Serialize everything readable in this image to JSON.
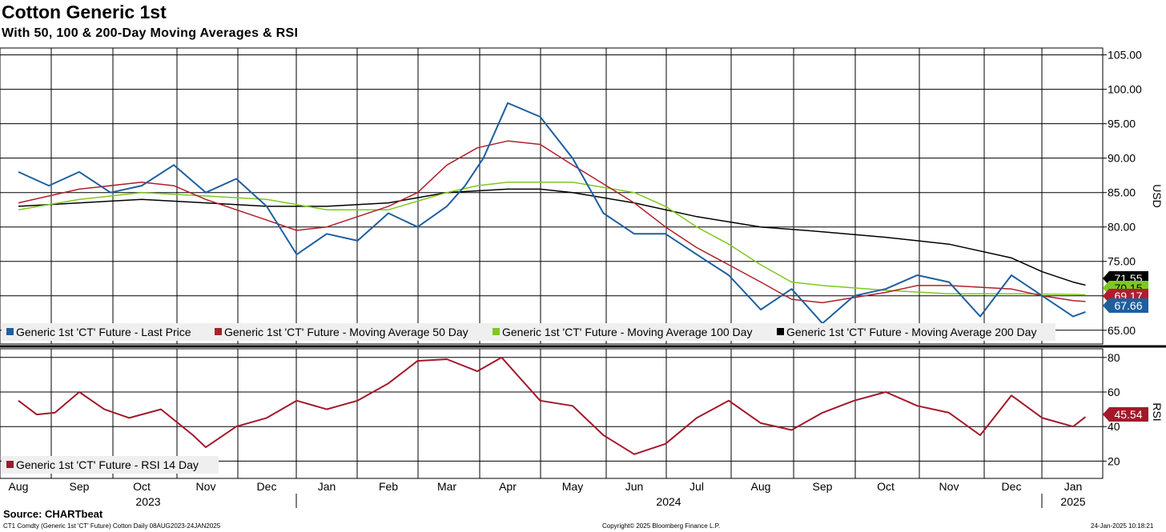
{
  "title": "Cotton Generic 1st",
  "subtitle": "With 50, 100 & 200-Day Moving Averages & RSI",
  "footer": {
    "source": "Source: CHARTbeat",
    "ticker": "CT1 Comdty (Generic 1st 'CT' Future) Cotton  Daily 08AUG2023-24JAN2025",
    "copyright": "Copyright© 2025 Bloomberg Finance L.P.",
    "timestamp": "24-Jan-2025 10:18:21"
  },
  "colors": {
    "price": "#1f5f9e",
    "ma50": "#b01e2b",
    "ma100": "#7ec820",
    "ma200": "#000000",
    "rsi": "#a3182b"
  },
  "chart_data": [
    {
      "type": "line",
      "panel": "price",
      "ylabel": "USD",
      "ylim": [
        63,
        106
      ],
      "yticks": [
        "105.00",
        "100.00",
        "95.00",
        "90.00",
        "85.00",
        "80.00",
        "75.00",
        "70.00",
        "65.00"
      ],
      "x_months": [
        "Aug",
        "Sep",
        "Oct",
        "Nov",
        "Dec",
        "Jan",
        "Feb",
        "Mar",
        "Apr",
        "May",
        "Jun",
        "Jul",
        "Aug",
        "Sep",
        "Oct",
        "Nov",
        "Dec",
        "Jan"
      ],
      "x_years": [
        "2023",
        "2024",
        "2025"
      ],
      "legend": [
        "Generic 1st 'CT' Future - Last Price",
        "Generic 1st 'CT' Future - Moving Average 50 Day",
        "Generic 1st 'CT' Future - Moving Average 100 Day",
        "Generic 1st 'CT' Future - Moving Average 200 Day"
      ],
      "last_labels": {
        "ma200": "71.55",
        "ma100": "70.15",
        "ma50": "69.17",
        "price": "67.66"
      },
      "series": [
        {
          "name": "Last Price",
          "key": "price",
          "x": [
            0,
            0.5,
            1,
            1.5,
            2,
            2.5,
            3,
            3.5,
            4,
            4.5,
            5,
            5.5,
            6,
            6.5,
            7,
            7.3,
            7.6,
            8,
            8.5,
            9,
            9.5,
            10,
            10.5,
            11,
            11.5,
            12,
            12.5,
            13,
            13.5,
            14,
            14.5,
            15,
            15.5,
            16,
            16.5,
            17,
            17.2
          ],
          "values": [
            88,
            86,
            88,
            85,
            86,
            89,
            85,
            87,
            83,
            76,
            79,
            78,
            82,
            80,
            83,
            86,
            90,
            98,
            96,
            90,
            82,
            79,
            79,
            76,
            73,
            68,
            71,
            66,
            70,
            71,
            73,
            72,
            67,
            73,
            70,
            67,
            67.66
          ]
        },
        {
          "name": "Moving Average 50 Day",
          "key": "ma50",
          "x": [
            0,
            1,
            2,
            2.5,
            3,
            4,
            4.5,
            5,
            6,
            6.5,
            7,
            7.5,
            8,
            8.5,
            9,
            10,
            10.5,
            11,
            11.5,
            12,
            12.5,
            13,
            14,
            14.5,
            15,
            16,
            16.5,
            17,
            17.2
          ],
          "values": [
            83.5,
            85.5,
            86.5,
            86,
            84,
            81,
            79.5,
            80,
            83,
            85,
            89,
            91.5,
            92.5,
            92,
            89,
            83.5,
            80,
            77,
            74.5,
            72,
            69.5,
            69,
            70.5,
            71.5,
            71.5,
            71,
            70,
            69.3,
            69.17
          ]
        },
        {
          "name": "Moving Average 100 Day",
          "key": "ma100",
          "x": [
            0,
            1,
            2,
            3,
            4,
            5,
            6,
            7,
            7.5,
            8,
            8.5,
            9,
            10,
            10.5,
            11,
            11.5,
            12,
            12.5,
            13,
            14,
            15,
            16,
            17,
            17.2
          ],
          "values": [
            82.5,
            84,
            85,
            84.5,
            84,
            82.5,
            82.5,
            85,
            86,
            86.5,
            86.5,
            86.5,
            85,
            83,
            80,
            77.5,
            74.5,
            72,
            71.5,
            70.8,
            70.3,
            70.3,
            70.2,
            70.15
          ]
        },
        {
          "name": "Moving Average 200 Day",
          "key": "ma200",
          "x": [
            0,
            1,
            2,
            3,
            4,
            5,
            6,
            7,
            8,
            8.5,
            9,
            10,
            11,
            12,
            13,
            14,
            15,
            16,
            16.5,
            17,
            17.2
          ],
          "values": [
            83,
            83.5,
            84,
            83.5,
            83,
            83,
            83.5,
            85,
            85.5,
            85.5,
            85,
            83.5,
            81.5,
            80,
            79.3,
            78.5,
            77.5,
            75.5,
            73.5,
            72,
            71.55
          ]
        }
      ]
    },
    {
      "type": "line",
      "panel": "rsi",
      "ylabel": "RSI",
      "ylim": [
        10,
        85
      ],
      "yticks": [
        "80",
        "60",
        "40",
        "20"
      ],
      "legend": [
        "Generic 1st 'CT' Future - RSI 14 Day"
      ],
      "last_label": "45.54",
      "series": [
        {
          "name": "RSI 14 Day",
          "key": "rsi",
          "x": [
            0,
            0.3,
            0.6,
            1,
            1.4,
            1.8,
            2.3,
            2.8,
            3,
            3.5,
            4,
            4.5,
            5,
            5.5,
            6,
            6.5,
            7,
            7.5,
            7.9,
            8.5,
            9,
            9.5,
            10,
            10.5,
            11,
            11.5,
            12,
            12.5,
            13,
            13.5,
            14,
            14.5,
            15,
            15.5,
            16,
            16.5,
            17,
            17.2
          ],
          "values": [
            55,
            47,
            48,
            60,
            50,
            45,
            50,
            35,
            28,
            40,
            45,
            55,
            50,
            55,
            65,
            78,
            79,
            72,
            80,
            55,
            52,
            35,
            24,
            30,
            45,
            55,
            42,
            38,
            48,
            55,
            60,
            52,
            48,
            35,
            58,
            45,
            40,
            45.54
          ]
        }
      ]
    }
  ]
}
